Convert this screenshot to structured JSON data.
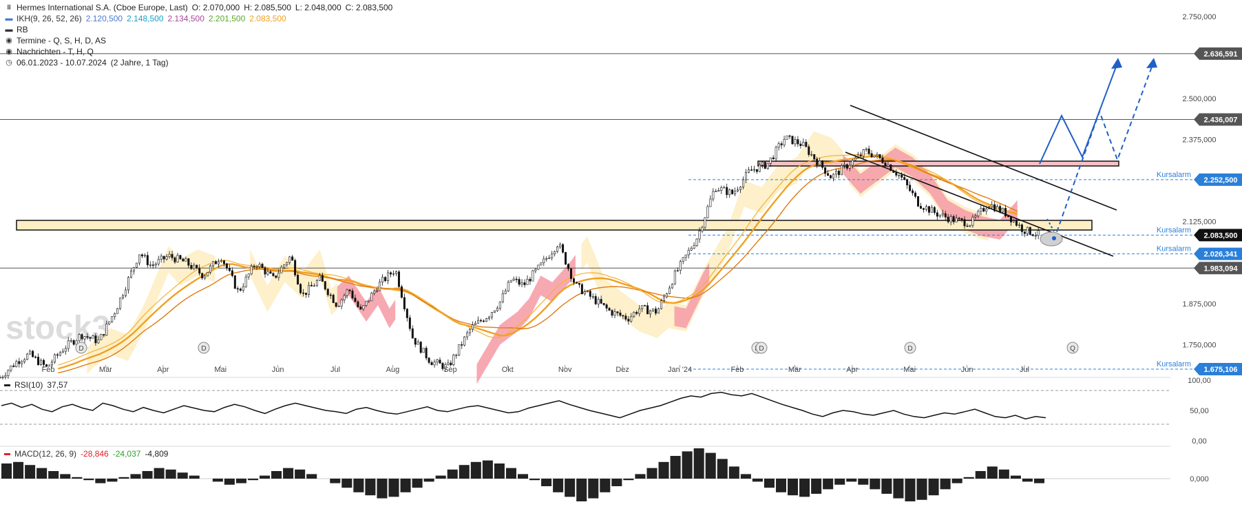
{
  "header": {
    "instrument": "Hermes International S.A. (Cboe Europe, Last)",
    "ohlc": [
      "O: 2.070,000",
      "H: 2.085,500",
      "L: 2.048,000",
      "C: 2.083,500"
    ],
    "ikh_label": "IKH(9, 26, 52, 26)",
    "ikh_values": [
      "2.120,500",
      "2.148,500",
      "2.134,500",
      "2.201,500",
      "2.083,500"
    ],
    "ikh_colors": [
      "#4a7bd0",
      "#1aa0c8",
      "#a34a9a",
      "#5aa82b",
      "#f0a020"
    ],
    "rb": "RB",
    "termine": "Termine - Q, S, H, D, AS",
    "nachrichten": "Nachrichten - T, H, Q",
    "range": "06.01.2023 - 10.07.2024",
    "range_note": "(2 Jahre, 1 Tag)"
  },
  "watermark": "stock3",
  "rsi": {
    "label": "RSI(10)",
    "value": "37,57",
    "color": "#222222"
  },
  "macd": {
    "label": "MACD(12, 26, 9)",
    "v1": "-28,846",
    "v2": "-24,037",
    "v3": "-4,809",
    "colors": [
      "#e0202a",
      "#e0202a",
      "#2aa02a",
      "#222222"
    ]
  },
  "colors": {
    "candle": "#111111",
    "cloud_bull": "#fdeec4",
    "cloud_bear": "#f6a0a8",
    "ma_orange": "#f0a020",
    "ma_dark": "#e07a10",
    "channel": "#111111",
    "arrow": "#1f5fc8",
    "alarm": "#2a7fd8",
    "rsi_green": "#2ec040",
    "support_zone": "#fdeec4",
    "resistance_zone": "#f6c0c4"
  },
  "chart_data": [
    {
      "type": "candlestick",
      "title": "Hermes International S.A. (Cboe Europe, Last)",
      "x_ticks": [
        "Feb",
        "Mär",
        "Apr",
        "Mai",
        "Jun",
        "Jul",
        "Aug",
        "Sep",
        "Okt",
        "Nov",
        "Dez",
        "Jan '24",
        "Feb",
        "Mär",
        "Apr",
        "Mai",
        "Jun",
        "Jul"
      ],
      "y_ticks": [
        "2.750,000",
        "2.500,000",
        "2.375,000",
        "2.125,000",
        "1.875,000",
        "1.750,000"
      ],
      "ylim": [
        1650,
        2800
      ],
      "price_path": [
        [
          0,
          1650
        ],
        [
          0.03,
          1700
        ],
        [
          0.05,
          1720
        ],
        [
          0.08,
          1680
        ],
        [
          0.11,
          1740
        ],
        [
          0.14,
          1780
        ],
        [
          0.17,
          1760
        ],
        [
          0.2,
          1860
        ],
        [
          0.24,
          2030
        ],
        [
          0.26,
          1990
        ],
        [
          0.29,
          2020
        ],
        [
          0.32,
          2000
        ],
        [
          0.35,
          1960
        ],
        [
          0.38,
          2020
        ],
        [
          0.41,
          1910
        ],
        [
          0.44,
          2000
        ],
        [
          0.47,
          1950
        ],
        [
          0.5,
          2020
        ],
        [
          0.52,
          1900
        ],
        [
          0.55,
          1950
        ],
        [
          0.58,
          1870
        ],
        [
          0.6,
          1920
        ],
        [
          0.62,
          1850
        ],
        [
          0.65,
          1930
        ],
        [
          0.68,
          1980
        ],
        [
          0.71,
          1770
        ],
        [
          0.74,
          1700
        ],
        [
          0.77,
          1680
        ],
        [
          0.79,
          1740
        ],
        [
          0.81,
          1800
        ],
        [
          0.84,
          1840
        ],
        [
          0.86,
          1880
        ],
        [
          0.88,
          1950
        ],
        [
          0.9,
          1930
        ],
        [
          0.93,
          1990
        ],
        [
          0.96,
          2060
        ],
        [
          0.99,
          1930
        ],
        [
          1.02,
          1890
        ],
        [
          1.05,
          1850
        ],
        [
          1.08,
          1830
        ],
        [
          1.1,
          1860
        ],
        [
          1.13,
          1850
        ],
        [
          1.16,
          1960
        ],
        [
          1.18,
          2020
        ],
        [
          1.2,
          2080
        ],
        [
          1.23,
          2230
        ],
        [
          1.26,
          2210
        ],
        [
          1.29,
          2280
        ],
        [
          1.32,
          2300
        ],
        [
          1.35,
          2380
        ],
        [
          1.38,
          2360
        ],
        [
          1.4,
          2320
        ],
        [
          1.43,
          2260
        ],
        [
          1.46,
          2300
        ],
        [
          1.49,
          2340
        ],
        [
          1.52,
          2310
        ],
        [
          1.55,
          2260
        ],
        [
          1.58,
          2180
        ],
        [
          1.61,
          2150
        ],
        [
          1.64,
          2130
        ],
        [
          1.67,
          2120
        ],
        [
          1.7,
          2180
        ],
        [
          1.73,
          2150
        ],
        [
          1.76,
          2100
        ],
        [
          1.79,
          2083
        ]
      ],
      "levels": [
        {
          "value": "2.636,591",
          "label": ""
        },
        {
          "value": "2.436,007",
          "label": ""
        },
        {
          "value": "2.252,500",
          "label": "Kursalarm"
        },
        {
          "value": "2.083,500",
          "label": "Kursalarm"
        },
        {
          "value": "2.026,341",
          "label": "Kursalarm"
        },
        {
          "value": "1.983,094",
          "label": ""
        },
        {
          "value": "1.675,106",
          "label": "Kursalarm"
        }
      ],
      "level_values_numeric": [
        2636.591,
        2436.007,
        2252.5,
        2083.5,
        2026.341,
        1983.094,
        1675.106
      ],
      "alarm_label": "Kursalarm",
      "events": [
        "D",
        "D",
        "D",
        "D",
        "Q"
      ]
    },
    {
      "type": "line",
      "title": "RSI(10)",
      "y_ticks": [
        "100,00",
        "50,00",
        "0,00"
      ],
      "ylim": [
        0,
        100
      ],
      "values": [
        58,
        62,
        55,
        60,
        52,
        48,
        56,
        60,
        54,
        50,
        62,
        58,
        52,
        48,
        55,
        50,
        46,
        52,
        58,
        54,
        50,
        48,
        55,
        60,
        56,
        50,
        45,
        52,
        58,
        62,
        58,
        54,
        50,
        48,
        45,
        52,
        55,
        50,
        46,
        44,
        48,
        52,
        56,
        50,
        48,
        52,
        56,
        58,
        54,
        50,
        46,
        48,
        54,
        58,
        62,
        66,
        60,
        55,
        50,
        46,
        42,
        38,
        44,
        50,
        54,
        58,
        64,
        70,
        74,
        72,
        78,
        80,
        76,
        74,
        78,
        72,
        66,
        60,
        55,
        50,
        44,
        40,
        46,
        50,
        48,
        44,
        42,
        46,
        50,
        44,
        40,
        38,
        42,
        46,
        44,
        48,
        52,
        46,
        40,
        38,
        42,
        36,
        40,
        38
      ]
    },
    {
      "type": "bar",
      "title": "MACD(12, 26, 9)",
      "y_ticks": [
        "0,000"
      ],
      "values": [
        20,
        22,
        18,
        14,
        10,
        6,
        2,
        -2,
        -6,
        -4,
        2,
        6,
        10,
        14,
        12,
        8,
        4,
        0,
        -4,
        -8,
        -6,
        -2,
        4,
        10,
        14,
        12,
        6,
        0,
        -6,
        -12,
        -18,
        -22,
        -26,
        -24,
        -18,
        -12,
        -4,
        4,
        12,
        18,
        22,
        24,
        20,
        14,
        6,
        -2,
        -10,
        -18,
        -24,
        -30,
        -26,
        -18,
        -10,
        -2,
        6,
        14,
        22,
        30,
        36,
        40,
        34,
        26,
        16,
        6,
        -4,
        -12,
        -18,
        -22,
        -24,
        -20,
        -14,
        -8,
        -4,
        -8,
        -14,
        -20,
        -26,
        -30,
        -28,
        -22,
        -14,
        -6,
        2,
        10,
        16,
        12,
        4,
        -4,
        -6
      ]
    }
  ]
}
